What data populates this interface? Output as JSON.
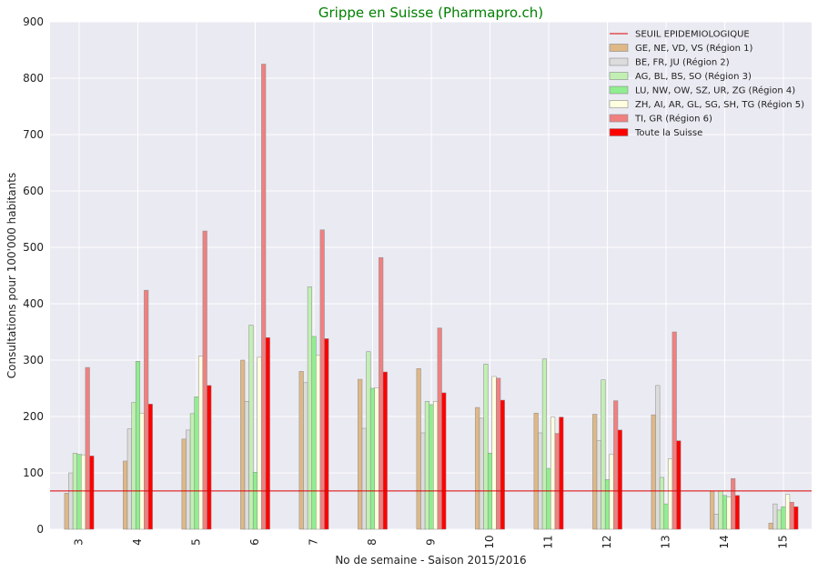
{
  "chart_data": {
    "type": "bar",
    "title": "Grippe en Suisse (Pharmapro.ch)",
    "title_color": "#008000",
    "xlabel": "No de semaine - Saison 2015/2016",
    "ylabel": "Consultations pour 100'000 habitants",
    "ylim": [
      0,
      900
    ],
    "yticks": [
      0,
      100,
      200,
      300,
      400,
      500,
      600,
      700,
      800,
      900
    ],
    "grid": true,
    "legend_position": "top-right",
    "categories": [
      "3",
      "4",
      "5",
      "6",
      "7",
      "8",
      "9",
      "10",
      "11",
      "12",
      "13",
      "14",
      "15"
    ],
    "threshold": {
      "name": "SEUIL EPIDEMIOLOGIQUE",
      "value": 68,
      "color": "#dd0000"
    },
    "series": [
      {
        "name": "GE, NE, VD, VS (Région 1)",
        "color": "#deb887",
        "values": [
          64,
          121,
          160,
          300,
          280,
          266,
          285,
          216,
          206,
          204,
          203,
          68,
          11
        ]
      },
      {
        "name": "BE, FR, JU (Région 2)",
        "color": "#dcdcdc",
        "values": [
          100,
          178,
          176,
          227,
          260,
          179,
          171,
          197,
          171,
          157,
          255,
          27,
          45
        ]
      },
      {
        "name": "AG, BL, BS, SO (Région 3)",
        "color": "#c1f0b2",
        "values": [
          135,
          225,
          205,
          362,
          430,
          315,
          227,
          293,
          302,
          265,
          92,
          68,
          34
        ]
      },
      {
        "name": "LU, NW, OW, SZ, UR, ZG (Région 4)",
        "color": "#90ee90",
        "values": [
          133,
          298,
          235,
          101,
          342,
          250,
          221,
          135,
          108,
          88,
          45,
          60,
          40
        ]
      },
      {
        "name": "ZH, AI, AR, GL, SG, SH, TG (Région 5)",
        "color": "#ffffe0",
        "values": [
          132,
          206,
          307,
          305,
          309,
          251,
          227,
          271,
          199,
          133,
          125,
          57,
          62
        ]
      },
      {
        "name": "TI, GR (Région 6)",
        "color": "#f08080",
        "values": [
          287,
          424,
          529,
          825,
          531,
          482,
          357,
          268,
          170,
          228,
          350,
          90,
          48
        ]
      },
      {
        "name": "Toute la Suisse",
        "color": "#ff0000",
        "values": [
          130,
          222,
          255,
          340,
          338,
          279,
          242,
          229,
          199,
          176,
          157,
          60,
          40
        ]
      }
    ]
  }
}
